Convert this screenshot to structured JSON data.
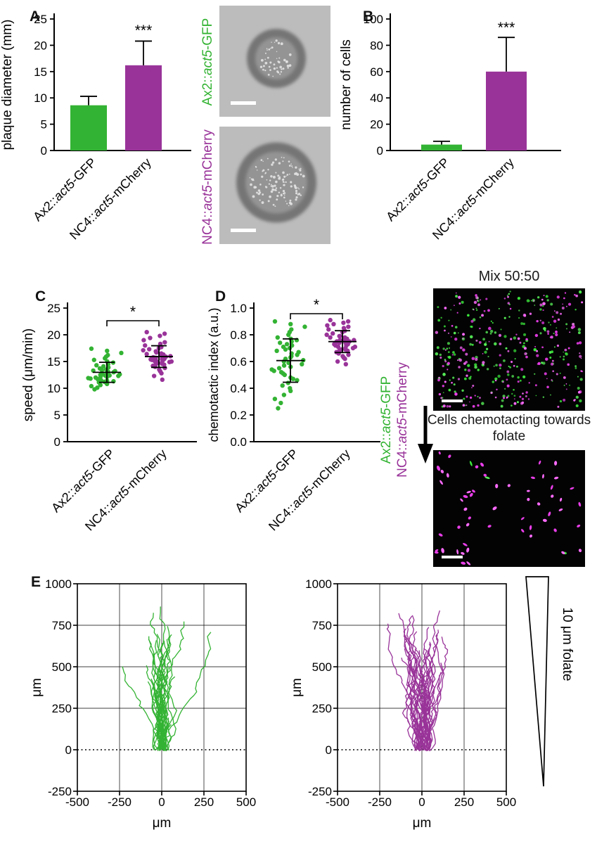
{
  "colors": {
    "green": "#33b333",
    "purple": "#993399",
    "black": "#000000",
    "fluor_green": "#3ce83c",
    "fluor_magenta": "#e93ee9"
  },
  "panels": {
    "A": {
      "letter": "A"
    },
    "B": {
      "letter": "B"
    },
    "C": {
      "letter": "C"
    },
    "D": {
      "letter": "D"
    },
    "E": {
      "letter": "E"
    }
  },
  "labels": {
    "plaque_top": "Ax2::act5-GFP",
    "plaque_bottom": "NC4::act5-mCherry",
    "mix_title": "Mix 50:50",
    "chemotaxis_caption": "Cells chemotacting towards folate",
    "legend_green": "Ax2::act5-GFP",
    "legend_purple": "NC4::act5-mCherry",
    "gradient_label": "10 μm folate"
  },
  "chart_data": [
    {
      "panel": "A",
      "mount": "chart-A",
      "type": "bar",
      "ylabel": "plaque diameter (mm)",
      "ylim": [
        0,
        25
      ],
      "yticks": [
        0,
        5,
        10,
        15,
        20,
        25
      ],
      "tick_decimals": 0,
      "categories": [
        "Ax2::act5-GFP",
        "NC4::act5-mCherry"
      ],
      "colors": [
        "green",
        "purple"
      ],
      "values": [
        8.6,
        16.2
      ],
      "errors": [
        1.7,
        4.6
      ],
      "significance": "***"
    },
    {
      "panel": "B",
      "mount": "chart-B",
      "type": "bar",
      "ylabel": "number of cells",
      "ylim": [
        0,
        100
      ],
      "yticks": [
        0,
        20,
        40,
        60,
        80,
        100
      ],
      "tick_decimals": 0,
      "categories": [
        "Ax2::act5-GFP",
        "NC4::act5-mCherry"
      ],
      "colors": [
        "green",
        "purple"
      ],
      "values": [
        4.5,
        60
      ],
      "errors": [
        2.5,
        26
      ],
      "significance": "***"
    },
    {
      "panel": "C",
      "mount": "chart-C",
      "type": "scatter",
      "ylabel": "speed (μm/min)",
      "ylim": [
        0,
        25
      ],
      "yticks": [
        0,
        5,
        10,
        15,
        20,
        25
      ],
      "tick_decimals": 0,
      "significance": "*",
      "series": [
        {
          "name": "Ax2::act5-GFP",
          "color": "green",
          "values": [
            9.8,
            10.1,
            10.4,
            10.6,
            10.8,
            11.0,
            11.1,
            11.2,
            11.3,
            11.4,
            11.5,
            11.6,
            11.7,
            11.8,
            11.9,
            12.0,
            12.1,
            12.2,
            12.3,
            12.4,
            12.5,
            12.6,
            12.7,
            12.8,
            12.9,
            13.0,
            13.1,
            13.2,
            13.3,
            13.4,
            13.5,
            13.7,
            13.9,
            14.1,
            14.3,
            14.5,
            14.8,
            15.0,
            15.3,
            15.6,
            15.9,
            16.2,
            16.6,
            17.0,
            17.4,
            12.4
          ]
        },
        {
          "name": "NC4::act5-mCherry",
          "color": "purple",
          "values": [
            11.6,
            12.3,
            12.8,
            13.2,
            13.5,
            13.8,
            14.0,
            14.2,
            14.4,
            14.5,
            14.6,
            14.7,
            14.8,
            14.9,
            15.0,
            15.1,
            15.2,
            15.3,
            15.4,
            15.5,
            15.6,
            15.7,
            15.8,
            15.9,
            16.0,
            16.1,
            16.2,
            16.3,
            16.4,
            16.5,
            16.7,
            16.9,
            17.1,
            17.3,
            17.5,
            17.7,
            18.0,
            18.3,
            18.6,
            19.0,
            19.4,
            19.8,
            20.2,
            20.5,
            15.45,
            15.05
          ]
        }
      ]
    },
    {
      "panel": "D",
      "mount": "chart-D",
      "type": "scatter",
      "ylabel": "chemotactic index (a.u.)",
      "ylim": [
        0,
        1
      ],
      "yticks": [
        0,
        0.2,
        0.4,
        0.6,
        0.8,
        1.0
      ],
      "tick_decimals": 1,
      "significance": "*",
      "series": [
        {
          "name": "Ax2::act5-GFP",
          "color": "green",
          "values": [
            0.25,
            0.29,
            0.32,
            0.35,
            0.38,
            0.4,
            0.42,
            0.44,
            0.46,
            0.48,
            0.5,
            0.51,
            0.52,
            0.53,
            0.54,
            0.55,
            0.56,
            0.57,
            0.58,
            0.59,
            0.6,
            0.61,
            0.62,
            0.63,
            0.64,
            0.65,
            0.66,
            0.67,
            0.68,
            0.69,
            0.7,
            0.71,
            0.72,
            0.73,
            0.74,
            0.75,
            0.76,
            0.77,
            0.78,
            0.8,
            0.82,
            0.84,
            0.86,
            0.88,
            0.9,
            0.47
          ]
        },
        {
          "name": "NC4::act5-mCherry",
          "color": "purple",
          "values": [
            0.58,
            0.6,
            0.62,
            0.63,
            0.64,
            0.65,
            0.66,
            0.67,
            0.68,
            0.68,
            0.69,
            0.69,
            0.7,
            0.7,
            0.71,
            0.71,
            0.72,
            0.72,
            0.73,
            0.73,
            0.74,
            0.74,
            0.75,
            0.75,
            0.76,
            0.76,
            0.77,
            0.77,
            0.78,
            0.78,
            0.79,
            0.79,
            0.8,
            0.81,
            0.82,
            0.83,
            0.84,
            0.85,
            0.86,
            0.87,
            0.88,
            0.89,
            0.9,
            0.91,
            0.74,
            0.76
          ]
        }
      ]
    },
    {
      "panel": "E",
      "mount": "tracks-left",
      "type": "tracks",
      "color": "green",
      "xlabel": "μm",
      "ylabel": "μm",
      "xlim": [
        -500,
        500
      ],
      "ylim": [
        -250,
        1000
      ],
      "xticks": [
        -500,
        -250,
        0,
        250,
        500
      ],
      "yticks": [
        -250,
        0,
        250,
        500,
        750,
        1000
      ],
      "n_tracks": 36,
      "max_y": 860,
      "seed": 42,
      "grid": true,
      "baseline_dotted_at": 0
    },
    {
      "panel": "E",
      "mount": "tracks-right",
      "type": "tracks",
      "color": "purple",
      "xlabel": "μm",
      "ylabel": "μm",
      "xlim": [
        -500,
        500
      ],
      "ylim": [
        -250,
        1000
      ],
      "xticks": [
        -500,
        -250,
        0,
        250,
        500
      ],
      "yticks": [
        -250,
        0,
        250,
        500,
        750,
        1000
      ],
      "n_tracks": 44,
      "max_y": 810,
      "seed": 1337,
      "grid": true,
      "baseline_dotted_at": 0
    }
  ]
}
